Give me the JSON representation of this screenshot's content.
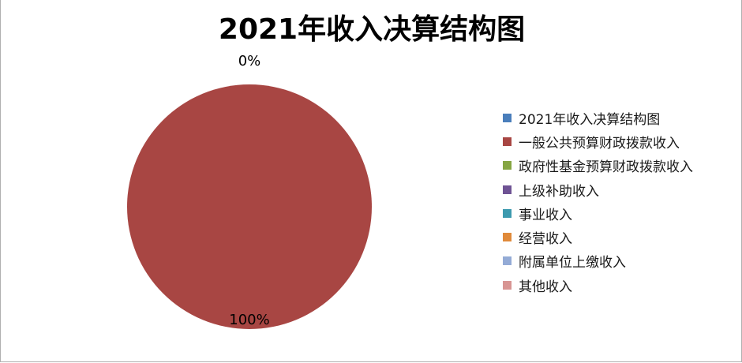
{
  "chart_data": {
    "type": "pie",
    "title": "2021年收入决算结构图",
    "series": [
      {
        "name": "2021年收入决算结构图",
        "value": 0,
        "label": "0%",
        "color": "#4a7ebb"
      },
      {
        "name": "一般公共预算财政拨款收入",
        "value": 100,
        "label": "100%",
        "color": "#a84643"
      },
      {
        "name": "政府性基金预算财政拨款收入",
        "value": 0,
        "color": "#86a643"
      },
      {
        "name": "上级补助收入",
        "value": 0,
        "color": "#6f5394"
      },
      {
        "name": "事业收入",
        "value": 0,
        "color": "#3d9aaf"
      },
      {
        "name": "经营收入",
        "value": 0,
        "color": "#e08a3a"
      },
      {
        "name": "附属单位上缴收入",
        "value": 0,
        "color": "#94abd6"
      },
      {
        "name": "其他收入",
        "value": 0,
        "color": "#d89593"
      }
    ],
    "legend": "right"
  }
}
